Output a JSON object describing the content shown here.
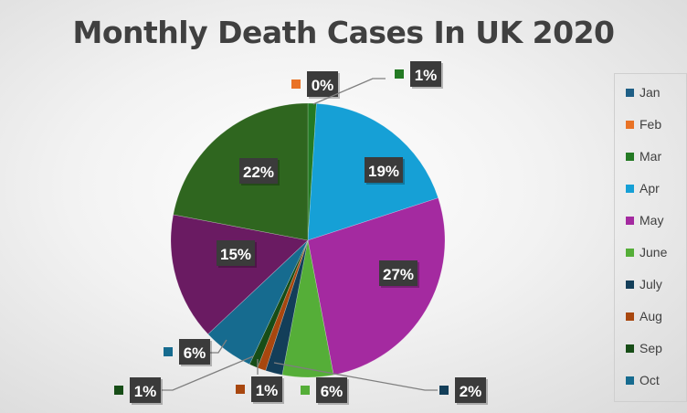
{
  "chart_data": {
    "type": "pie",
    "title": "Monthly Death Cases In UK 2020",
    "legend_position": "right",
    "slices": [
      {
        "category": "Jan",
        "value": 0,
        "label": "",
        "color": "#1f5f86"
      },
      {
        "category": "Feb",
        "value": 0,
        "label": "0%",
        "color": "#e97326"
      },
      {
        "category": "Mar",
        "value": 1,
        "label": "1%",
        "color": "#247a24"
      },
      {
        "category": "Apr",
        "value": 19,
        "label": "19%",
        "color": "#16a0d6"
      },
      {
        "category": "May",
        "value": 27,
        "label": "27%",
        "color": "#a42aa0"
      },
      {
        "category": "June",
        "value": 6,
        "label": "6%",
        "color": "#55ae38"
      },
      {
        "category": "July",
        "value": 2,
        "label": "2%",
        "color": "#133e59"
      },
      {
        "category": "Aug",
        "value": 1,
        "label": "1%",
        "color": "#a8470f"
      },
      {
        "category": "Sep",
        "value": 1,
        "label": "1%",
        "color": "#174d17"
      },
      {
        "category": "Oct",
        "value": 6,
        "label": "6%",
        "color": "#166b8f"
      },
      {
        "category": "",
        "value": 15,
        "label": "15%",
        "color": "#6a1b62"
      },
      {
        "category": "",
        "value": 22,
        "label": "22%",
        "color": "#2f661f"
      }
    ],
    "legend": [
      "Jan",
      "Feb",
      "Mar",
      "Apr",
      "May",
      "June",
      "July",
      "Aug",
      "Sep",
      "Oct"
    ]
  }
}
